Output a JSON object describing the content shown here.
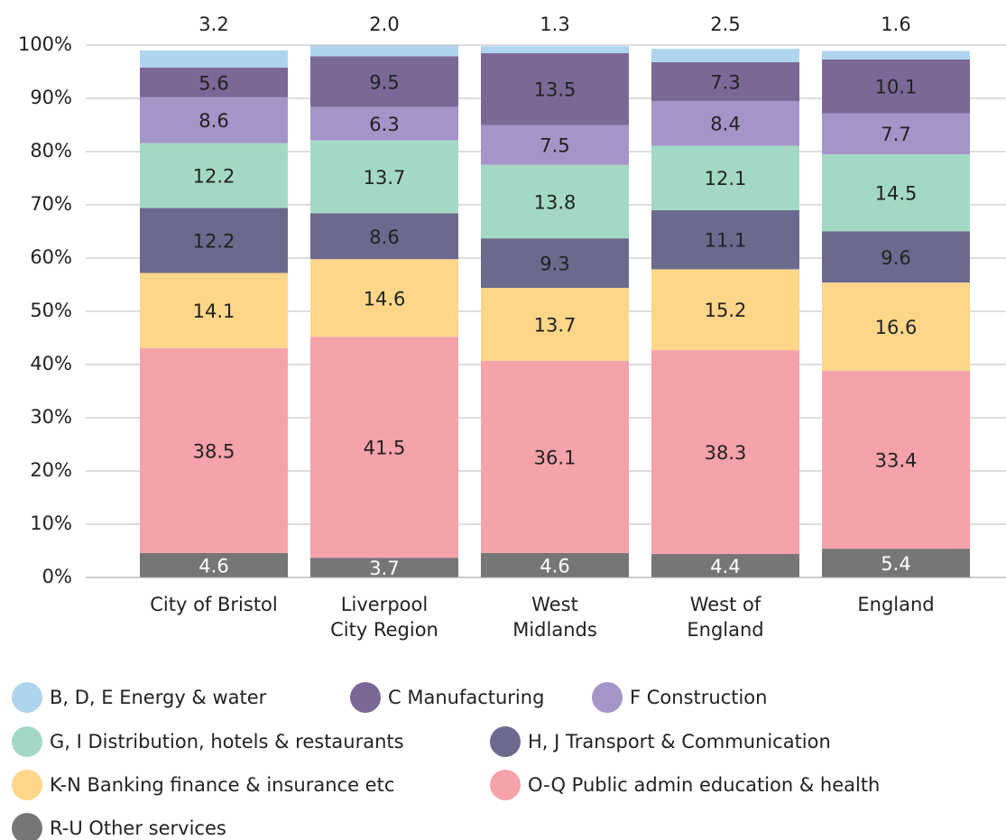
{
  "chart_data": {
    "type": "stacked_bar",
    "categories": [
      "City of Bristol",
      "Liverpool\nCity Region",
      "West\nMidlands",
      "West of\nEngland",
      "England"
    ],
    "series": [
      {
        "name": "R-U Other services",
        "color": "#767676",
        "values": [
          4.6,
          3.7,
          4.6,
          4.4,
          5.4
        ]
      },
      {
        "name": "O-Q Public admin education & health",
        "color": "#f5a2ab",
        "values": [
          38.5,
          41.5,
          36.1,
          38.3,
          33.4
        ]
      },
      {
        "name": "K-N Banking finance & insurance etc",
        "color": "#fdd68a",
        "values": [
          14.1,
          14.6,
          13.7,
          15.2,
          16.6
        ]
      },
      {
        "name": "H, J Transport & Communication",
        "color": "#6b6a8e",
        "values": [
          12.2,
          8.6,
          9.3,
          11.1,
          9.6
        ]
      },
      {
        "name": "G, I Distribution, hotels & restaurants",
        "color": "#a3d9c4",
        "values": [
          12.2,
          13.7,
          13.8,
          12.1,
          14.5
        ]
      },
      {
        "name": "F Construction",
        "color": "#a494c8",
        "values": [
          8.6,
          6.3,
          7.5,
          8.4,
          7.7
        ]
      },
      {
        "name": "C Manufacturing",
        "color": "#7b6896",
        "values": [
          5.6,
          9.5,
          13.5,
          7.3,
          10.1
        ]
      },
      {
        "name": "B, D, E Energy & water",
        "color": "#aed4ee",
        "values": [
          3.2,
          2.0,
          1.3,
          2.5,
          1.6
        ],
        "value_labels": [
          "3.2",
          "2.0",
          "1.3",
          "2.5",
          "1.6"
        ]
      }
    ],
    "ylim": [
      0,
      100
    ],
    "yticks": [
      {
        "value": 0,
        "label": "0%"
      },
      {
        "value": 10,
        "label": "10%"
      },
      {
        "value": 20,
        "label": "20%"
      },
      {
        "value": 30,
        "label": "30%"
      },
      {
        "value": 40,
        "label": "40%"
      },
      {
        "value": 50,
        "label": "50%"
      },
      {
        "value": 60,
        "label": "60%"
      },
      {
        "value": 70,
        "label": "70%"
      },
      {
        "value": 80,
        "label": "80%"
      },
      {
        "value": 90,
        "label": "90%"
      },
      {
        "value": 100,
        "label": "100%"
      }
    ],
    "grid": true
  }
}
